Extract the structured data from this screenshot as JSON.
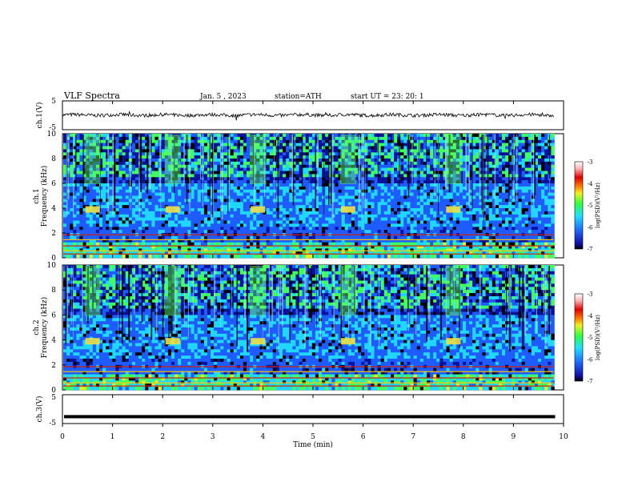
{
  "header": {
    "title": "VLF  Spectra",
    "date": "Jan.  5  , 2023",
    "station": "station=ATH",
    "start_ut": "start  UT  =    23: 20: 1"
  },
  "chart_data": [
    {
      "type": "line",
      "panel": "ch1-waveform",
      "ylabel": "ch.1(V)",
      "ylim": [
        -5,
        5
      ],
      "yticks": [
        "5",
        "-5"
      ],
      "xlim": [
        0,
        9.8
      ],
      "baseline_value": 0.1,
      "noise_amplitude": 0.6
    },
    {
      "type": "heatmap",
      "panel": "ch1-spectrogram",
      "ylabel": "ch.1\nFrequency (kHz)",
      "ylabel_lines": [
        "ch.1",
        "Frequency  (kHz)"
      ],
      "ylim": [
        0,
        10
      ],
      "yticks": [
        "0",
        "2",
        "4",
        "6",
        "8",
        "10"
      ],
      "xlim": [
        0,
        9.8
      ],
      "tone_bursts_min": [
        0.6,
        2.2,
        3.9,
        5.7,
        7.8
      ],
      "tone_burst_freq_khz": 3.9,
      "colorbar": {
        "label": "log(PSD)(V²/Hz)",
        "range": [
          -7,
          -3
        ],
        "ticks": [
          "-3",
          "-4",
          "-5",
          "-6",
          "-7"
        ]
      }
    },
    {
      "type": "heatmap",
      "panel": "ch2-spectrogram",
      "ylabel_lines": [
        "ch.2",
        "Frequency  (kHz)"
      ],
      "ylim": [
        0,
        10
      ],
      "yticks": [
        "0",
        "2",
        "4",
        "6",
        "8",
        "10"
      ],
      "xlim": [
        0,
        9.8
      ],
      "tone_bursts_min": [
        0.6,
        2.2,
        3.9,
        5.7,
        7.8
      ],
      "tone_burst_freq_khz": 3.9,
      "colorbar": {
        "label": "log(PSD)(V²/Hz)",
        "range": [
          -7,
          -3
        ],
        "ticks": [
          "-3",
          "-4",
          "-5",
          "-6",
          "-7"
        ]
      }
    },
    {
      "type": "line",
      "panel": "ch3-waveform",
      "ylabel": "ch.3(V)",
      "ylim": [
        -5,
        5
      ],
      "yticks": [
        "5",
        "-5"
      ],
      "xlim": [
        0,
        9.8
      ],
      "baseline_value": -2.6
    }
  ],
  "xaxis": {
    "label": "Time  (min)",
    "range": [
      0,
      10
    ],
    "ticks": [
      "0",
      "1",
      "2",
      "3",
      "4",
      "5",
      "6",
      "7",
      "8",
      "9",
      "10"
    ]
  },
  "colors": {
    "waveform": "#000000",
    "spectrogram_background": "#0a1a9a",
    "burst": "#f0e040"
  }
}
